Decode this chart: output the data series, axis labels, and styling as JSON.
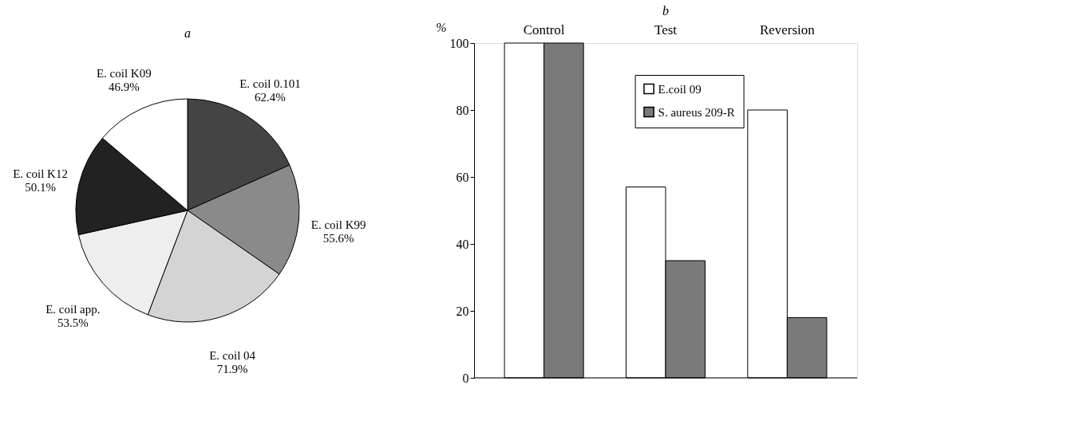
{
  "chart_data": [
    {
      "type": "pie",
      "title": "a",
      "categories": [
        "E. coil 0.101",
        "E. coil K99",
        "E. coil 04",
        "E. coil app.",
        "E. coil K12",
        "E. coil K09"
      ],
      "values": [
        62.4,
        55.6,
        71.9,
        53.5,
        50.1,
        46.9
      ],
      "value_labels": [
        "62.4%",
        "55.6%",
        "71.9%",
        "53.5%",
        "50.1%",
        "46.9%"
      ],
      "colors": [
        "#444444",
        "#8a8a8a",
        "#d4d4d4",
        "#eeeeee",
        "#222222",
        "#ffffff"
      ],
      "legend": false
    },
    {
      "type": "bar",
      "title": "b",
      "ylabel": "%",
      "categories": [
        "Control",
        "Test",
        "Reversion"
      ],
      "series": [
        {
          "name": "E.coil 09",
          "color": "#ffffff",
          "values": [
            100,
            57,
            80
          ]
        },
        {
          "name": "S. aureus 209-R",
          "color": "#7a7a7a",
          "values": [
            100,
            35,
            18
          ]
        }
      ],
      "ylim": [
        0,
        100
      ],
      "yticks": [
        0,
        20,
        40,
        60,
        80,
        100
      ],
      "grid": false,
      "legend": "top"
    }
  ]
}
